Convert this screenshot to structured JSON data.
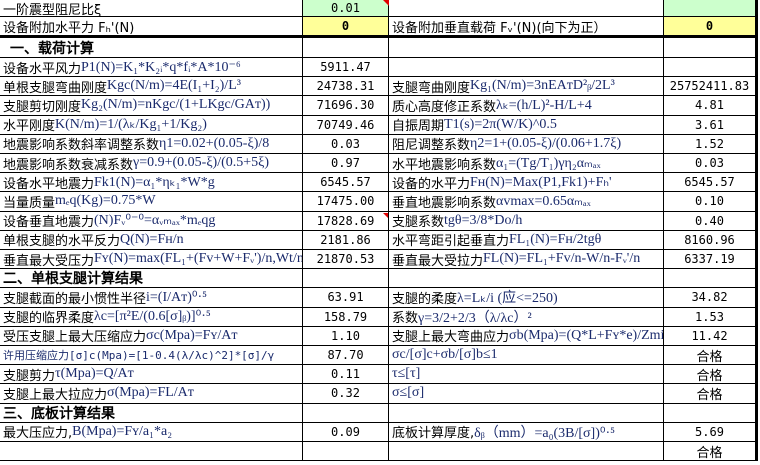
{
  "header_rows": [
    {
      "left_label": "一阶震型阻尼比ξ",
      "left_value": "0.01",
      "right_label": "",
      "right_value": ""
    },
    {
      "left_label": "设备附加水平力 Fₕ'(N)",
      "left_value": "0",
      "right_label": "设备附加垂直载荷 Fᵥ'(N)(向下为正）",
      "right_value": "0"
    }
  ],
  "colors": {
    "input_green": "#ccffcc",
    "input_yellow": "#ffff99",
    "formula_text": "#1a2a6c",
    "comment_marker": "#e00000"
  },
  "rows": [
    {
      "section": "一、载荷计算"
    },
    {
      "l_cn": "设备水平风力",
      "l_f": "P1(N)=K₁*K₂ᵢ*q*fᵢ*A*10⁻⁶",
      "l_v": "5911.47",
      "r_cn": "",
      "r_f": "",
      "r_v": ""
    },
    {
      "l_cn": "单根支腿弯曲刚度",
      "l_f": "Kgc(N/m)=4E(I₁+I₂)/L³",
      "l_v": "24738.31",
      "r_cn": "支腿弯曲刚度",
      "r_f": "Kg₁(N/m)=3nEAᴛD²ᵦ/2L³",
      "r_v": "25752411.83"
    },
    {
      "l_cn": "支腿剪切刚度",
      "l_f": "Kg₂(N/m)=nKgc/(1+LKgc/GAᴛ))",
      "l_v": "71696.30",
      "r_cn": "质心高度修正系数",
      "r_f": "λₖ=(h/L)²-H/L+4",
      "r_v": "4.81"
    },
    {
      "l_cn": "水平刚度",
      "l_f": "K(N/m)=1/(λₖ/Kg₁+1/Kg₂)",
      "l_v": "70749.46",
      "r_cn": "自振周期",
      "r_f": "T1(s)=2π(W/K)^0.5",
      "r_v": "3.61"
    },
    {
      "l_cn": "地震影响系数斜率调整系数",
      "l_f": "η1=0.02+(0.05-ξ)/8",
      "l_v": "0.03",
      "r_cn": "阻尼调整系数",
      "r_f": "η2=1+(0.05-ξ)/(0.06+1.7ξ)",
      "r_v": "1.52"
    },
    {
      "l_cn": "地震影响系数衰减系数",
      "l_f": "γ=0.9+(0.05-ξ)/(0.5+5ξ)",
      "l_v": "0.97",
      "r_cn": "水平地震影响系数",
      "r_f": "α₁=(Tg/T₁)γη₂αₘₐₓ",
      "r_v": "0.03"
    },
    {
      "l_cn": "设备水平地震力",
      "l_f": "Fk1(N)=α₁*ηₖ₁*W*g",
      "l_v": "6545.57",
      "r_cn": "设备的水平力",
      "r_f": "Fʜ(N)=Max(P1,Fk1)+Fₕ'",
      "r_v": "6545.57"
    },
    {
      "l_cn": "当量质量",
      "l_f": "mₑq(Kg)=0.75*W",
      "l_v": "17475.00",
      "r_cn": "垂直地震影响系数",
      "r_f": "αvmax=0.65αₘₐₓ",
      "r_v": "0.10"
    },
    {
      "l_cn": "设备垂直地震力",
      "l_f": "(N)Fᵥ⁰⁻⁰=αᵥₘₐₓ*mₑqg",
      "l_v": "17828.69",
      "r_cn": "支腿系数",
      "r_f": "tgθ=3/8*Do/h",
      "r_v": "0.40"
    },
    {
      "l_cn": "单根支腿的水平反力 ",
      "l_f": "Q(N)=Fʜ/n",
      "l_v": "2181.86",
      "r_cn": "水平弯距引起垂直力",
      "r_f": "FL₁(N)=Fʜ/2tgθ",
      "r_v": "8160.96"
    },
    {
      "l_cn": "垂直最大受压力",
      "l_f": "Fʏ(N)=max(FL₁+(Fv+W+Fᵥ')/n,Wt/n)",
      "l_v": "21870.53",
      "r_cn": "垂直最大受拉力",
      "r_f": "FL(N)=FL₁+Fv/n-W/n-Fᵥ'/n",
      "r_v": "6337.19"
    },
    {
      "section": "二、单根支腿计算结果"
    },
    {
      "l_cn": "支腿截面的最小惯性半径",
      "l_f": "i=(I/Aᴛ)⁰·⁵",
      "l_v": "63.91",
      "r_cn": "支腿的柔度",
      "r_f": "λ=Lₖ/i (应<=250)",
      "r_v": "34.82"
    },
    {
      "l_cn": "支腿的临界柔度",
      "l_f": "λc=[π²E/(0.6[σ]ᵦ)]⁰·⁵",
      "l_v": "158.79",
      "r_cn": "系数",
      "r_f": "γ=3/2+2/3（λ/λc）²",
      "r_v": "1.53"
    },
    {
      "l_cn": "受压支腿上最大压缩应力",
      "l_f": "σc(Mpa)=Fʏ/Aᴛ",
      "l_v": "1.10",
      "r_cn": "支腿上最大弯曲应力",
      "r_f": "σb(Mpa)=(Q*L+Fʏ*e)/Zmin",
      "r_v": "11.42"
    },
    {
      "l_cn": "许用压缩应力[σ]c(Mpa)=[1-0.4(λ/λc)^2]*[σ]/γ",
      "l_f": "",
      "l_v": "87.70",
      "r_cn": "",
      "r_f": "σc/[σ]c+σb/[σ]b≤1",
      "r_v": "合格"
    },
    {
      "l_cn": "支腿剪力 ",
      "l_f": "τ(Mpa)=Q/Aᴛ",
      "l_v": "0.11",
      "r_cn": "",
      "r_f": "τ≤[τ]",
      "r_v": "合格"
    },
    {
      "l_cn": "支腿上最大拉应力",
      "l_f": "σ(Mpa)=FL/Aᴛ",
      "l_v": "0.32",
      "r_cn": "",
      "r_f": "σ≤[σ]",
      "r_v": "合格"
    },
    {
      "section": "三、底板计算结果"
    },
    {
      "l_cn": "最大压应力,",
      "l_f": "B(Mpa)=Fʏ/a₁*a₂",
      "l_v": "0.09",
      "r_cn": "底板计算厚度,",
      "r_f": "δᵦ（mm）=a₀(3B/[σ])⁰·⁵",
      "r_v": "5.69"
    },
    {
      "l_cn": "",
      "l_f": "",
      "l_v": "",
      "r_cn": "",
      "r_f": "",
      "r_v": "合格"
    }
  ]
}
